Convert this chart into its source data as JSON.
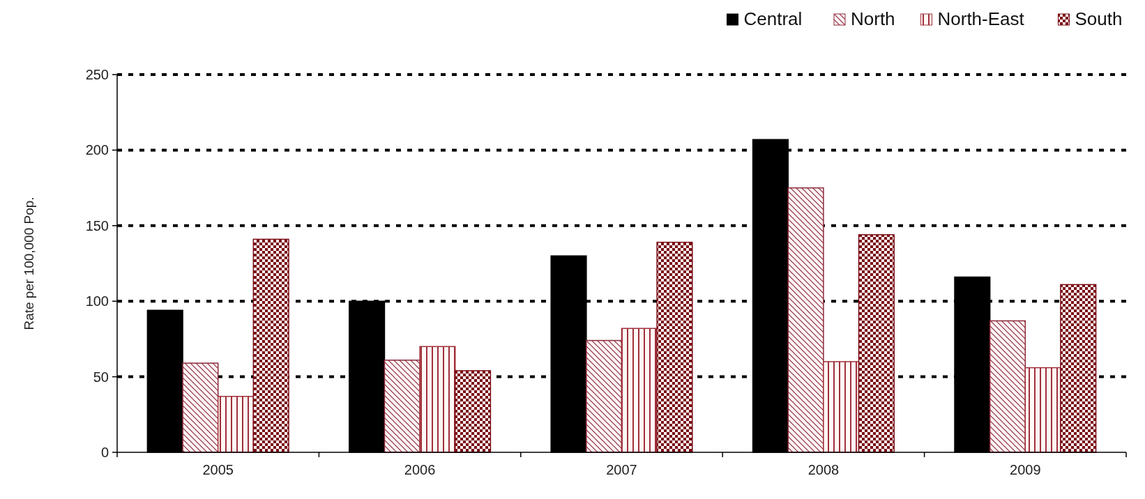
{
  "chart_data": {
    "type": "bar",
    "ylabel": "Rate per 100,000 Pop.",
    "categories": [
      "2005",
      "2006",
      "2007",
      "2008",
      "2009"
    ],
    "series": [
      {
        "name": "Central",
        "color": "#000000",
        "values": [
          94,
          100,
          130,
          207,
          116
        ]
      },
      {
        "name": "North",
        "color": "#8b2a3a",
        "values": [
          59,
          61,
          74,
          175,
          87
        ]
      },
      {
        "name": "North-East",
        "color": "#a0303a",
        "values": [
          37,
          70,
          82,
          60,
          56
        ]
      },
      {
        "name": "South",
        "color": "#7a0a14",
        "values": [
          141,
          54,
          139,
          144,
          111
        ]
      }
    ],
    "ylim": [
      0,
      250
    ],
    "yticks": [
      0,
      50,
      100,
      150,
      200,
      250
    ],
    "grid": "y",
    "legend": "top right"
  }
}
